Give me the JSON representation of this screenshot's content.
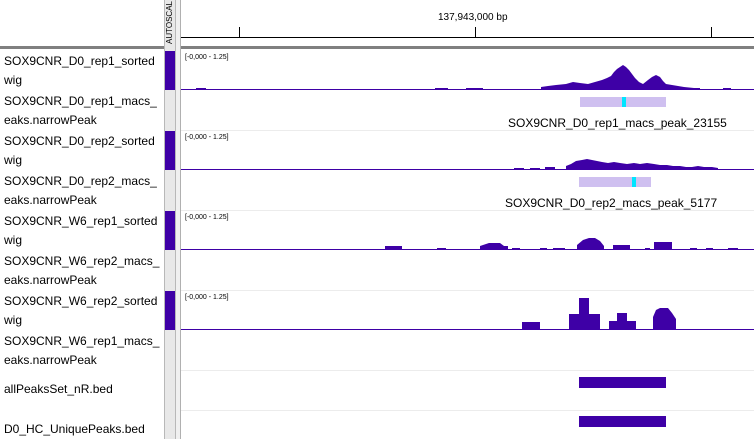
{
  "ruler": {
    "position_label": "137,943,000 bp"
  },
  "autoscale": {
    "label": "AUTOSCAL"
  },
  "tracks": [
    {
      "name_line1": "SOX9CNR_D0_rep1_sorted",
      "name_line2": "wig",
      "range": "[-0,000 - 1.25]"
    },
    {
      "name_line1": "SOX9CNR_D0_rep1_macs_",
      "name_line2": "eaks.narrowPeak",
      "peak_label": "SOX9CNR_D0_rep1_macs_peak_23155"
    },
    {
      "name_line1": "SOX9CNR_D0_rep2_sorted",
      "name_line2": "wig",
      "range": "[-0,000 - 1.25]"
    },
    {
      "name_line1": "SOX9CNR_D0_rep2_macs_",
      "name_line2": "eaks.narrowPeak",
      "peak_label": "SOX9CNR_D0_rep2_macs_peak_5177"
    },
    {
      "name_line1": "SOX9CNR_W6_rep1_sorted",
      "name_line2": "wig",
      "range": "[-0,000 - 1.25]"
    },
    {
      "name_line1": "SOX9CNR_W6_rep2_macs_",
      "name_line2": "eaks.narrowPeak"
    },
    {
      "name_line1": "SOX9CNR_W6_rep2_sorted",
      "name_line2": "wig",
      "range": "[-0,000 - 1.25]"
    },
    {
      "name_line1": "SOX9CNR_W6_rep1_macs_",
      "name_line2": "eaks.narrowPeak"
    },
    {
      "name_line1": "allPeaksSet_nR.bed"
    },
    {
      "name_line1": "D0_HC_UniquePeaks.bed"
    }
  ],
  "colors": {
    "signal": "#3e00a6",
    "peak": "#cfc0f0",
    "summit": "#00e5ff"
  }
}
